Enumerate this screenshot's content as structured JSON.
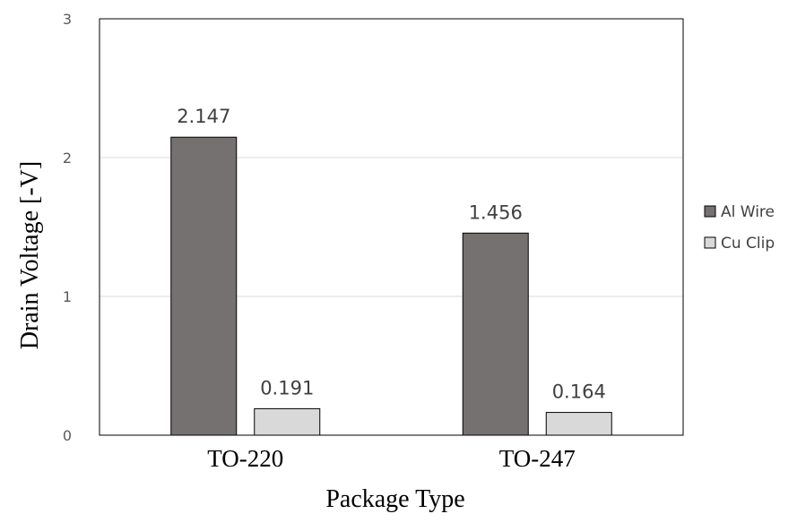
{
  "chart_data": {
    "type": "bar",
    "categories": [
      "TO-220",
      "TO-247"
    ],
    "series": [
      {
        "name": "Al Wire",
        "values": [
          2.147,
          1.456
        ],
        "labels": [
          "2.147",
          "1.456"
        ],
        "color": "#767171"
      },
      {
        "name": "Cu Clip",
        "values": [
          0.191,
          0.164
        ],
        "labels": [
          "0.191",
          "0.164"
        ],
        "color": "#D9D9D9"
      }
    ],
    "xlabel": "Package Type",
    "ylabel": "Drain Voltage [-V]",
    "ylim": [
      0,
      3
    ],
    "yticks": [
      0,
      1,
      2,
      3
    ],
    "ytick_labels": [
      "0",
      "1",
      "2",
      "3"
    ],
    "grid": true,
    "legend_position": "right"
  }
}
